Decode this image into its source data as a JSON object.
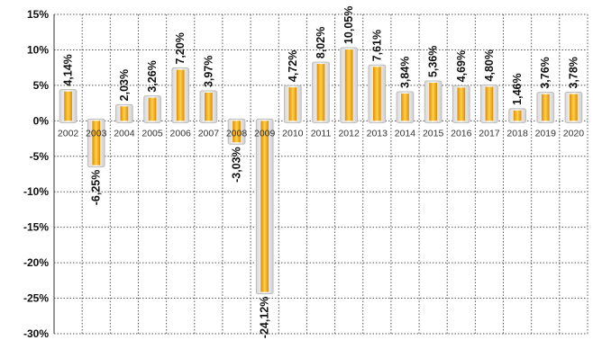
{
  "chart_data": {
    "type": "bar",
    "title": "",
    "xlabel": "",
    "ylabel": "",
    "ylim": [
      -30,
      15
    ],
    "yticks": [
      15,
      10,
      5,
      0,
      -5,
      -10,
      -15,
      -20,
      -25,
      -30
    ],
    "ytick_labels": [
      "15%",
      "10%",
      "5%",
      "0%",
      "-5%",
      "-10%",
      "-15%",
      "-20%",
      "-25%",
      "-30%"
    ],
    "grid": true,
    "legend": "none",
    "bar_color": "#F5A300",
    "bar_highlight": "#FFE27A",
    "categories": [
      "2002",
      "2003",
      "2004",
      "2005",
      "2006",
      "2007",
      "2008",
      "2009",
      "2010",
      "2011",
      "2012",
      "2013",
      "2014",
      "2015",
      "2016",
      "2017",
      "2018",
      "2019",
      "2020"
    ],
    "values": [
      4.14,
      -6.25,
      2.03,
      3.26,
      7.2,
      3.97,
      -3.03,
      -24.12,
      4.72,
      8.02,
      10.05,
      7.61,
      3.84,
      5.36,
      4.69,
      4.8,
      1.46,
      3.76,
      3.78
    ],
    "data_labels": [
      "4,14%",
      "-6,25%",
      "2,03%",
      "3,26%",
      "7,20%",
      "3,97%",
      "-3,03%",
      "-24,12%",
      "4,72%",
      "8,02%",
      "10,05%",
      "7,61%",
      "3,84%",
      "5,36%",
      "4,69%",
      "4,80%",
      "1,46%",
      "3,76%",
      "3,78%"
    ]
  }
}
